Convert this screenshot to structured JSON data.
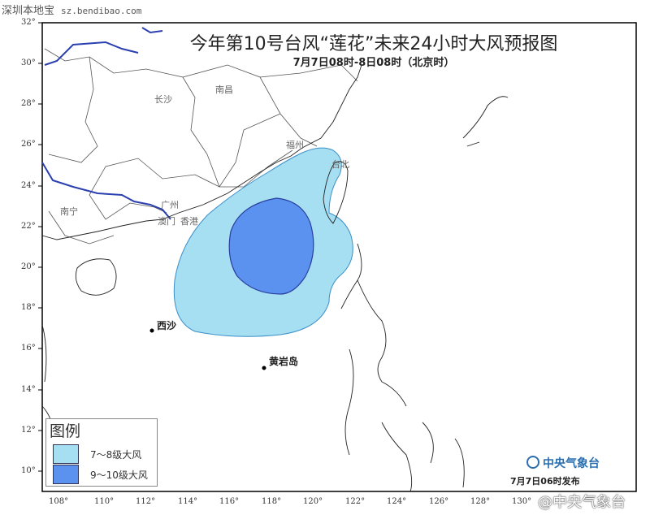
{
  "watermark_site": {
    "name": "深圳本地宝",
    "url": "sz.bendibao.com"
  },
  "title": "今年第10号台风“莲花”未来24小时大风预报图",
  "subtitle": "7月7日08时-8日08时（北京时）",
  "cities": {
    "changsha": "长沙",
    "nanchang": "南昌",
    "fuzhou": "福州",
    "taibei": "台北",
    "guangzhou": "广州",
    "aomen": "澳门",
    "xianggang": "香港",
    "nanning": "南宁",
    "xisha": "西沙",
    "huangyandao": "黄岩岛"
  },
  "x_axis_labels": [
    "108°",
    "110°",
    "112°",
    "114°",
    "116°",
    "118°",
    "120°",
    "122°",
    "124°",
    "126°",
    "128°",
    "130°"
  ],
  "y_axis_labels": [
    "32°",
    "30°",
    "28°",
    "26°",
    "24°",
    "22°",
    "20°",
    "18°",
    "16°",
    "14°",
    "12°",
    "10°"
  ],
  "legend": {
    "title": "图例",
    "items": [
      {
        "label": "7～8级大风",
        "color": "#a6def2"
      },
      {
        "label": "9～10级大风",
        "color": "#5b92ef"
      }
    ]
  },
  "organization": "中央气象台",
  "issued": "7月7日06时发布",
  "corner_watermark": "@中央气象台",
  "colors": {
    "river": "#2a3fb0",
    "boundary": "#555555"
  }
}
